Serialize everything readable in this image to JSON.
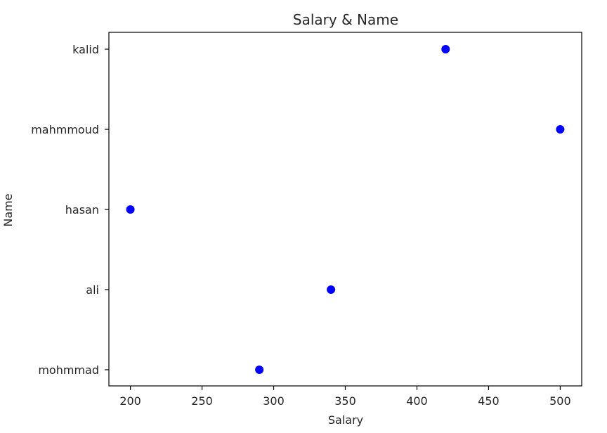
{
  "chart_data": {
    "type": "scatter",
    "title": "Salary & Name",
    "xlabel": "Salary",
    "ylabel": "Name",
    "xlim": [
      185,
      515
    ],
    "xticks": [
      200,
      250,
      300,
      350,
      400,
      450,
      500
    ],
    "categories": [
      "mohmmad",
      "ali",
      "hasan",
      "mahmmoud",
      "kalid"
    ],
    "grid": false,
    "legend": "none",
    "marker_color": "#0000ff",
    "series": [
      {
        "points": [
          {
            "name": "kalid",
            "salary": 420
          },
          {
            "name": "mahmmoud",
            "salary": 500
          },
          {
            "name": "hasan",
            "salary": 200
          },
          {
            "name": "ali",
            "salary": 340
          },
          {
            "name": "mohmmad",
            "salary": 290
          }
        ]
      }
    ]
  }
}
